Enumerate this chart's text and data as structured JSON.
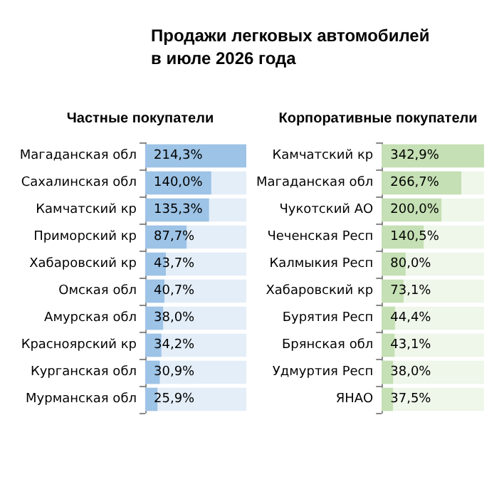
{
  "chart_data": [
    {
      "type": "bar",
      "orientation": "horizontal",
      "title": "Продажи легковых автомобилей в июле 2026 года",
      "subtitle": "Частные покупатели",
      "tick_labels": "y",
      "grid": false,
      "color": "#9dc3e6",
      "categories": [
        "Магаданская обл",
        "Сахалинская обл",
        "Камчатский кр",
        "Приморский кр",
        "Хабаровский кр",
        "Омская обл",
        "Амурская обл",
        "Красноярский кр",
        "Курганская обл",
        "Мурманская обл"
      ],
      "values": [
        214.3,
        140.0,
        135.3,
        87.7,
        43.7,
        40.7,
        38.0,
        34.2,
        30.9,
        25.9
      ],
      "value_labels": [
        "214,3%",
        "140,0%",
        "135,3%",
        "87,7%",
        "43,7%",
        "40,7%",
        "38,0%",
        "34,2%",
        "30,9%",
        "25,9%"
      ]
    },
    {
      "type": "bar",
      "orientation": "horizontal",
      "title": "Корпоративные покупатели",
      "tick_labels": "y",
      "grid": false,
      "color": "#c5e0b4",
      "categories": [
        "Камчатский кр",
        "Магаданская обл",
        "Чукотский АО",
        "Чеченская Респ",
        "Калмыкия Респ",
        "Хабаровский кр",
        "Бурятия Респ",
        "Брянская обл",
        "Удмуртия Респ",
        "ЯНАО"
      ],
      "values": [
        342.9,
        266.7,
        200.0,
        140.5,
        80.0,
        73.1,
        44.4,
        43.1,
        38.0,
        37.5
      ],
      "value_labels": [
        "342,9%",
        "266,7%",
        "200,0%",
        "140,5%",
        "80,0%",
        "73,1%",
        "44,4%",
        "43,1%",
        "38,0%",
        "37,5%"
      ]
    }
  ]
}
